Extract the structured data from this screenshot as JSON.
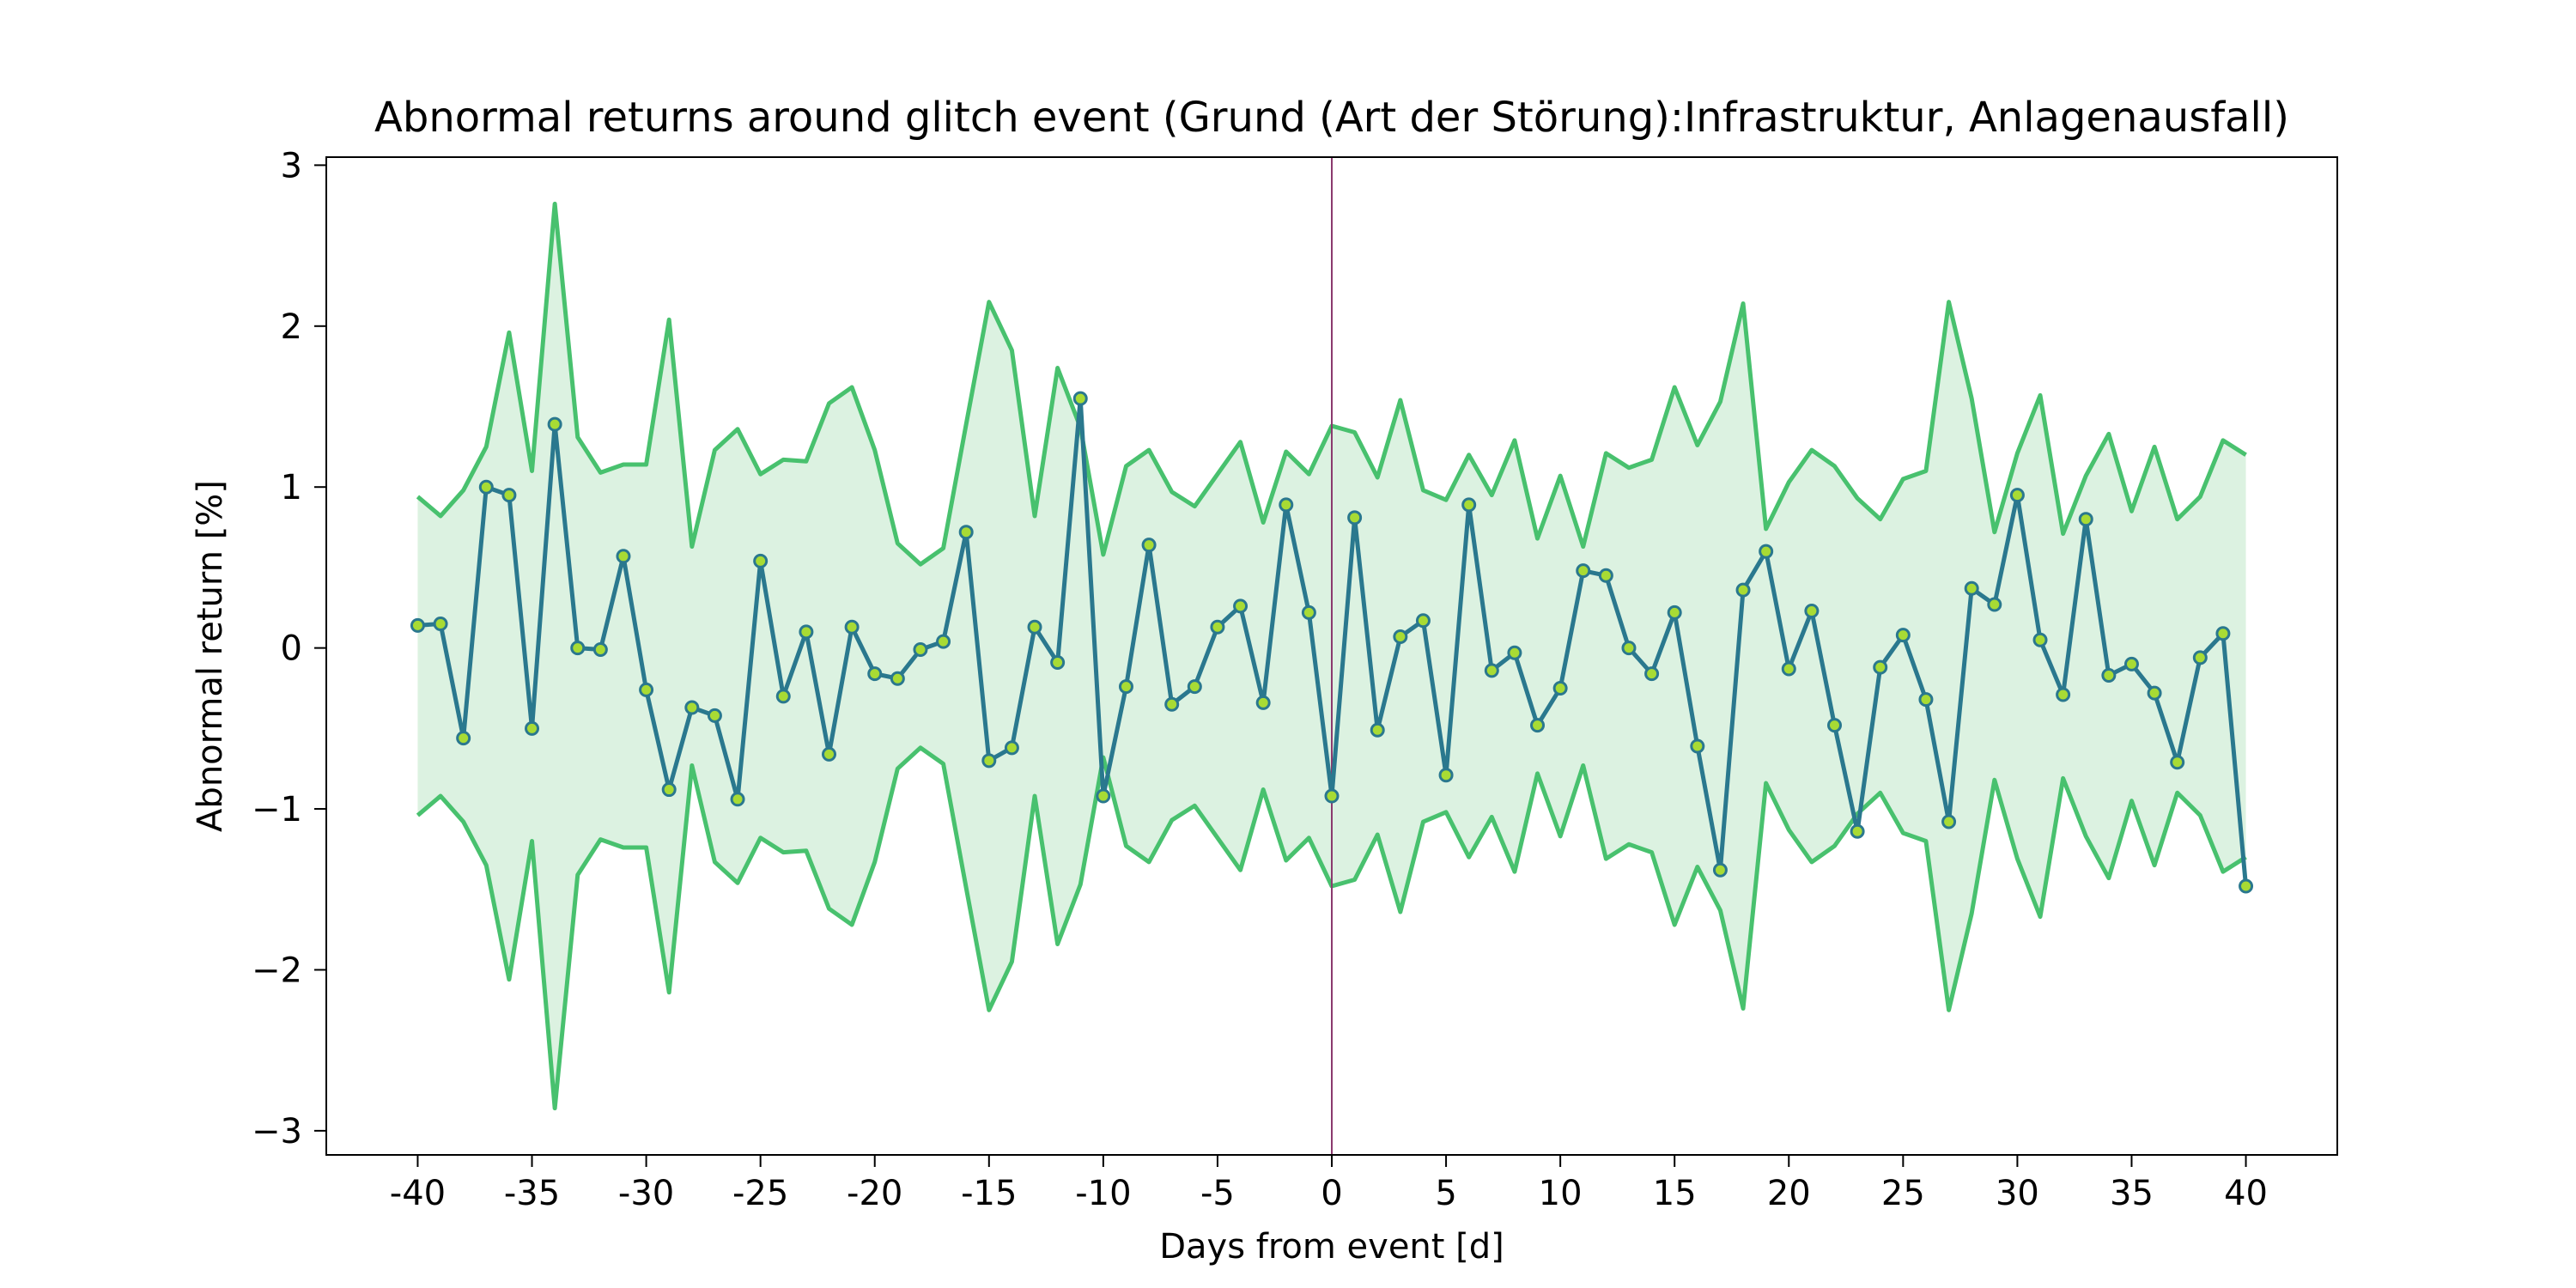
{
  "chart_data": {
    "type": "line",
    "title": "Abnormal returns around glitch event (Grund (Art der Störung):Infrastruktur, Anlagenausfall)",
    "xlabel": "Days from event [d]",
    "ylabel": "Abnormal return [%]",
    "xlim": [
      -44,
      44
    ],
    "ylim": [
      -3.15,
      3.05
    ],
    "x_ticks": [
      -40,
      -35,
      -30,
      -25,
      -20,
      -15,
      -10,
      -5,
      0,
      5,
      10,
      15,
      20,
      25,
      30,
      35,
      40
    ],
    "x_tick_labels": [
      "-40",
      "-35",
      "-30",
      "-25",
      "-20",
      "-15",
      "-10",
      "-5",
      "0",
      "5",
      "10",
      "15",
      "20",
      "25",
      "30",
      "35",
      "40"
    ],
    "y_ticks": [
      -3,
      -2,
      -1,
      0,
      1,
      2,
      3
    ],
    "y_tick_labels": [
      "−3",
      "−2",
      "−1",
      "0",
      "1",
      "2",
      "3"
    ],
    "event_line_x": 0,
    "grid": false,
    "colors": {
      "line": "#2a788e",
      "band": "#48c16e",
      "band_fill": "#dcf2e1",
      "marker_face": "#a8db34",
      "marker_edge": "#2a788e",
      "event_line": "#8b3a6e"
    },
    "x": [
      -40,
      -39,
      -38,
      -37,
      -36,
      -35,
      -34,
      -33,
      -32,
      -31,
      -30,
      -29,
      -28,
      -27,
      -26,
      -25,
      -24,
      -23,
      -22,
      -21,
      -20,
      -19,
      -18,
      -17,
      -16,
      -15,
      -14,
      -13,
      -12,
      -11,
      -10,
      -9,
      -8,
      -7,
      -6,
      -5,
      -4,
      -3,
      -2,
      -1,
      0,
      1,
      2,
      3,
      4,
      5,
      6,
      7,
      8,
      9,
      10,
      11,
      12,
      13,
      14,
      15,
      16,
      17,
      18,
      19,
      20,
      21,
      22,
      23,
      24,
      25,
      26,
      27,
      28,
      29,
      30,
      31,
      32,
      33,
      34,
      35,
      36,
      37,
      38,
      39,
      40
    ],
    "series": [
      {
        "role": "abnormal-return",
        "values": [
          0.14,
          0.15,
          -0.56,
          1.0,
          0.95,
          -0.5,
          1.39,
          0.0,
          -0.01,
          0.57,
          -0.26,
          -0.88,
          -0.37,
          -0.42,
          -0.94,
          0.54,
          -0.3,
          0.1,
          -0.66,
          0.13,
          -0.16,
          -0.19,
          -0.01,
          0.04,
          0.72,
          -0.7,
          -0.62,
          0.13,
          -0.09,
          1.55,
          -0.92,
          -0.24,
          0.64,
          -0.35,
          -0.24,
          0.13,
          0.26,
          -0.34,
          0.89,
          0.22,
          -0.92,
          0.81,
          -0.51,
          0.07,
          0.17,
          -0.79,
          0.89,
          -0.14,
          -0.03,
          -0.48,
          -0.25,
          0.48,
          0.45,
          0.0,
          -0.16,
          0.22,
          -0.61,
          -1.38,
          0.36,
          0.6,
          -0.13,
          0.23,
          -0.48,
          -1.14,
          -0.12,
          0.08,
          -0.32,
          -1.08,
          0.37,
          0.27,
          0.95,
          0.05,
          -0.29,
          0.8,
          -0.17,
          -0.1,
          -0.28,
          -0.71,
          -0.06,
          0.09,
          -1.48
        ]
      },
      {
        "role": "upper-band",
        "values": [
          0.94,
          0.82,
          0.98,
          1.25,
          1.96,
          1.1,
          2.76,
          1.31,
          1.09,
          1.14,
          1.14,
          2.04,
          0.63,
          1.23,
          1.36,
          1.08,
          1.17,
          1.16,
          1.52,
          1.62,
          1.23,
          0.65,
          0.52,
          0.62,
          1.39,
          2.15,
          1.85,
          0.82,
          1.74,
          1.37,
          0.58,
          1.13,
          1.23,
          0.97,
          0.88,
          1.08,
          1.28,
          0.78,
          1.22,
          1.08,
          1.38,
          1.34,
          1.06,
          1.54,
          0.98,
          0.92,
          1.2,
          0.95,
          1.29,
          0.68,
          1.07,
          0.63,
          1.21,
          1.12,
          1.17,
          1.62,
          1.26,
          1.53,
          2.14,
          0.74,
          1.03,
          1.23,
          1.13,
          0.93,
          0.8,
          1.05,
          1.1,
          2.15,
          1.55,
          0.72,
          1.21,
          1.57,
          0.71,
          1.07,
          1.33,
          0.85,
          1.25,
          0.8,
          0.94,
          1.29,
          1.2
        ]
      },
      {
        "role": "lower-band",
        "values": [
          -1.04,
          -0.92,
          -1.08,
          -1.35,
          -2.06,
          -1.2,
          -2.86,
          -1.41,
          -1.19,
          -1.24,
          -1.24,
          -2.14,
          -0.73,
          -1.33,
          -1.46,
          -1.18,
          -1.27,
          -1.26,
          -1.62,
          -1.72,
          -1.33,
          -0.75,
          -0.62,
          -0.72,
          -1.49,
          -2.25,
          -1.95,
          -0.92,
          -1.84,
          -1.47,
          -0.68,
          -1.23,
          -1.33,
          -1.07,
          -0.98,
          -1.18,
          -1.38,
          -0.88,
          -1.32,
          -1.18,
          -1.48,
          -1.44,
          -1.16,
          -1.64,
          -1.08,
          -1.02,
          -1.3,
          -1.05,
          -1.39,
          -0.78,
          -1.17,
          -0.73,
          -1.31,
          -1.22,
          -1.27,
          -1.72,
          -1.36,
          -1.63,
          -2.24,
          -0.84,
          -1.13,
          -1.33,
          -1.23,
          -1.03,
          -0.9,
          -1.15,
          -1.2,
          -2.25,
          -1.65,
          -0.82,
          -1.31,
          -1.67,
          -0.81,
          -1.17,
          -1.43,
          -0.95,
          -1.35,
          -0.9,
          -1.04,
          -1.39,
          -1.3
        ]
      }
    ]
  }
}
